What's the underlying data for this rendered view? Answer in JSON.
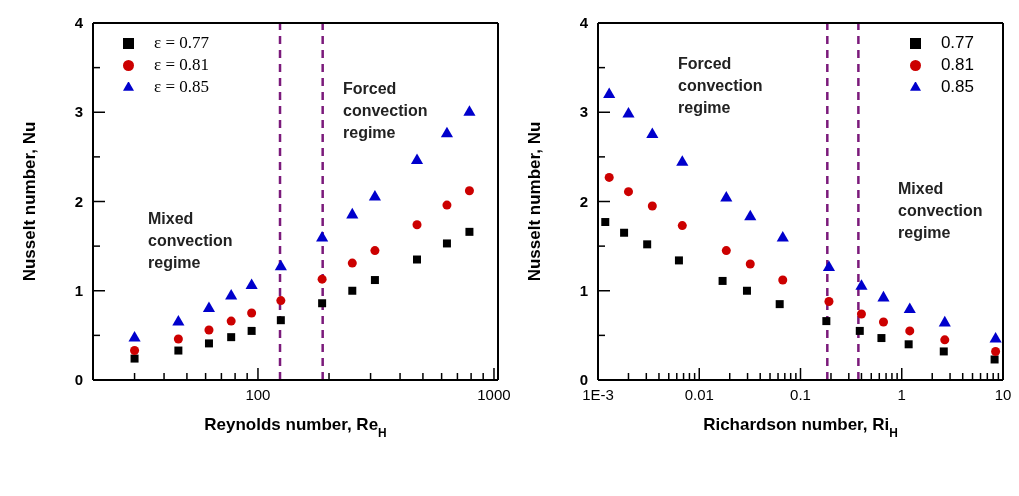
{
  "chart_data": [
    {
      "type": "scatter",
      "xlabel": "Reynolds number, Re$_{H}$",
      "ylabel": "Nusselt number, Nu",
      "log": "x",
      "xlim": [
        20,
        1040
      ],
      "xticks": [
        {
          "value": 30,
          "label": null
        },
        {
          "value": 40,
          "label": null
        },
        {
          "value": 50,
          "label": null
        },
        {
          "value": 60,
          "label": null
        },
        {
          "value": 70,
          "label": null
        },
        {
          "value": 80,
          "label": null
        },
        {
          "value": 90,
          "label": null
        },
        100,
        {
          "value": 200,
          "label": null
        },
        {
          "value": 300,
          "label": null
        },
        {
          "value": 400,
          "label": null
        },
        {
          "value": 500,
          "label": null
        },
        {
          "value": 600,
          "label": null
        },
        {
          "value": 700,
          "label": null
        },
        {
          "value": 800,
          "label": null
        },
        {
          "value": 900,
          "label": null
        },
        1000
      ],
      "ylim": [
        0,
        4
      ],
      "yticks": [
        0,
        {
          "value": 0.5,
          "label": null
        },
        1,
        {
          "value": 1.5,
          "label": null
        },
        2,
        {
          "value": 2.5,
          "label": null
        },
        3,
        {
          "value": 3.5,
          "label": null
        },
        4
      ],
      "legend": "top left",
      "x": [
        30,
        46,
        62,
        77,
        94,
        125,
        187,
        251,
        313,
        472,
        632,
        787
      ],
      "series": [
        {
          "name": "ε = 0.77",
          "color": "#000000",
          "marker": "square",
          "values": [
            0.24,
            0.33,
            0.41,
            0.48,
            0.55,
            0.67,
            0.86,
            1.0,
            1.12,
            1.35,
            1.53,
            1.66
          ]
        },
        {
          "name": "ε = 0.81",
          "color": "#cc0000",
          "marker": "circle",
          "values": [
            0.33,
            0.46,
            0.56,
            0.66,
            0.75,
            0.89,
            1.13,
            1.31,
            1.45,
            1.74,
            1.96,
            2.12
          ]
        },
        {
          "name": "ε = 0.85",
          "color": "#0000cc",
          "marker": "triangle",
          "values": [
            0.47,
            0.65,
            0.8,
            0.94,
            1.06,
            1.27,
            1.59,
            1.85,
            2.05,
            2.46,
            2.76,
            3.0
          ]
        }
      ],
      "ref_lines": [
        {
          "axis": "x",
          "value": 124,
          "color": "#7b1a7b",
          "line_style": "dashed"
        },
        {
          "axis": "x",
          "value": 188,
          "color": "#7b1a7b",
          "line_style": "dashed"
        }
      ],
      "annotations": [
        "Mixed convection regime",
        "Forced convection regime"
      ]
    },
    {
      "type": "scatter",
      "xlabel": "Richardson number, Ri$_{H}$",
      "ylabel": "Nusselt number, Nu",
      "log": "x",
      "xlim": [
        0.001,
        10
      ],
      "xticks": [
        {
          "value": 0.001,
          "label": "1E-3"
        },
        {
          "value": 0.002,
          "label": null
        },
        {
          "value": 0.003,
          "label": null
        },
        {
          "value": 0.004,
          "label": null
        },
        {
          "value": 0.005,
          "label": null
        },
        {
          "value": 0.006,
          "label": null
        },
        {
          "value": 0.007,
          "label": null
        },
        {
          "value": 0.008,
          "label": null
        },
        {
          "value": 0.009,
          "label": null
        },
        0.01,
        {
          "value": 0.02,
          "label": null
        },
        {
          "value": 0.03,
          "label": null
        },
        {
          "value": 0.04,
          "label": null
        },
        {
          "value": 0.05,
          "label": null
        },
        {
          "value": 0.06,
          "label": null
        },
        {
          "value": 0.07,
          "label": null
        },
        {
          "value": 0.08,
          "label": null
        },
        {
          "value": 0.09,
          "label": null
        },
        0.1,
        {
          "value": 0.2,
          "label": null
        },
        {
          "value": 0.3,
          "label": null
        },
        {
          "value": 0.4,
          "label": null
        },
        {
          "value": 0.5,
          "label": null
        },
        {
          "value": 0.6,
          "label": null
        },
        {
          "value": 0.7,
          "label": null
        },
        {
          "value": 0.8,
          "label": null
        },
        {
          "value": 0.9,
          "label": null
        },
        1,
        {
          "value": 2,
          "label": null
        },
        {
          "value": 3,
          "label": null
        },
        {
          "value": 4,
          "label": null
        },
        {
          "value": 5,
          "label": null
        },
        {
          "value": 6,
          "label": null
        },
        {
          "value": 7,
          "label": null
        },
        {
          "value": 8,
          "label": null
        },
        {
          "value": 9,
          "label": null
        },
        10
      ],
      "ylim": [
        0,
        4
      ],
      "yticks": [
        0,
        {
          "value": 0.5,
          "label": null
        },
        1,
        {
          "value": 1.5,
          "label": null
        },
        2,
        {
          "value": 2.5,
          "label": null
        },
        3,
        {
          "value": 3.5,
          "label": null
        },
        4
      ],
      "legend": "top right",
      "series": [
        {
          "name": "0.77",
          "color": "#000000",
          "marker": "square",
          "x": [
            0.00118,
            0.00181,
            0.00306,
            0.0063,
            0.017,
            0.0296,
            0.0623,
            0.18,
            0.385,
            0.63,
            1.17,
            2.6,
            8.26
          ],
          "values": [
            1.77,
            1.65,
            1.52,
            1.34,
            1.11,
            1.0,
            0.85,
            0.66,
            0.55,
            0.47,
            0.4,
            0.32,
            0.23
          ]
        },
        {
          "name": "0.81",
          "color": "#cc0000",
          "marker": "circle",
          "x": [
            0.00129,
            0.002,
            0.00344,
            0.0068,
            0.0185,
            0.0319,
            0.0668,
            0.191,
            0.4,
            0.66,
            1.2,
            2.66,
            8.45
          ],
          "values": [
            2.27,
            2.11,
            1.95,
            1.73,
            1.45,
            1.3,
            1.12,
            0.88,
            0.74,
            0.65,
            0.55,
            0.45,
            0.32
          ]
        },
        {
          "name": "0.85",
          "color": "#0000cc",
          "marker": "triangle",
          "x": [
            0.00129,
            0.002,
            0.00344,
            0.0068,
            0.0185,
            0.0319,
            0.0668,
            0.191,
            0.4,
            0.66,
            1.2,
            2.66,
            8.45
          ],
          "values": [
            3.2,
            2.98,
            2.75,
            2.44,
            2.04,
            1.83,
            1.59,
            1.26,
            1.05,
            0.92,
            0.79,
            0.64,
            0.46
          ]
        }
      ],
      "ref_lines": [
        {
          "axis": "x",
          "value": 0.184,
          "color": "#7b1a7b",
          "line_style": "dashed"
        },
        {
          "axis": "x",
          "value": 0.373,
          "color": "#7b1a7b",
          "line_style": "dashed"
        }
      ],
      "annotations": [
        "Forced convection regime",
        "Mixed convection regime"
      ]
    }
  ]
}
